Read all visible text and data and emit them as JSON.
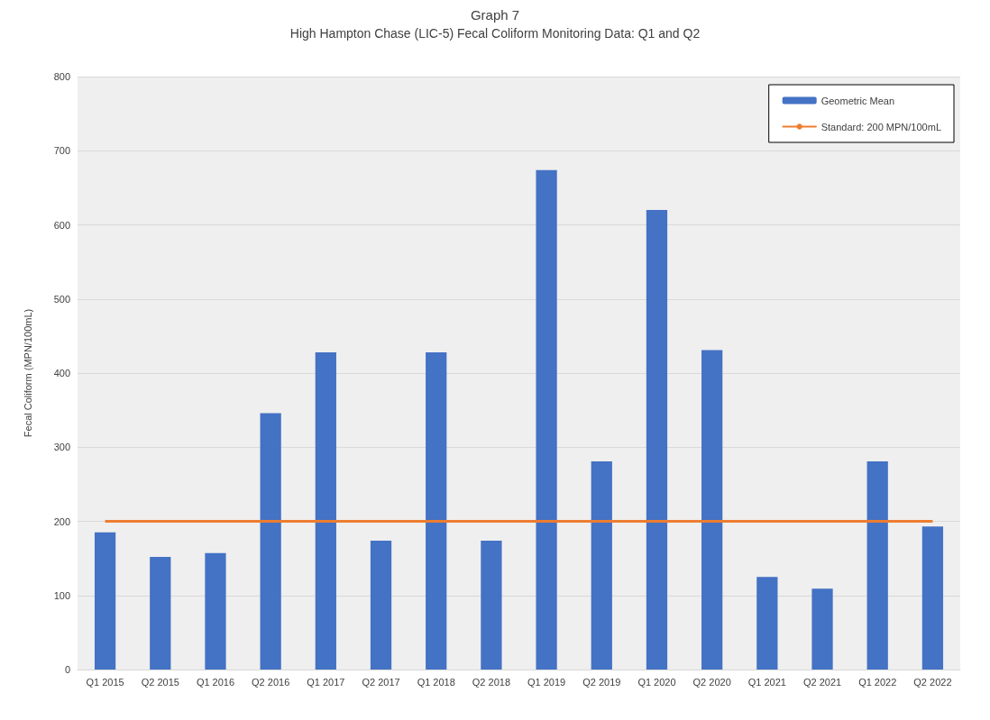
{
  "chart_data": {
    "type": "bar",
    "title": "Graph 7",
    "subtitle": "High Hampton Chase (LIC-5) Fecal Coliform Monitoring Data: Q1 and Q2",
    "ylabel": "Fecal Coliform (MPN/100mL)",
    "categories": [
      "Q1 2015",
      "Q2 2015",
      "Q1 2016",
      "Q2 2016",
      "Q1 2017",
      "Q2 2017",
      "Q1 2018",
      "Q2 2018",
      "Q1 2019",
      "Q2 2019",
      "Q1 2020",
      "Q2 2020",
      "Q1 2021",
      "Q2 2021",
      "Q1 2022",
      "Q2 2022"
    ],
    "series": [
      {
        "name": "Geometric Mean",
        "color": "#4472c4",
        "values": [
          185,
          152,
          157,
          346,
          428,
          174,
          428,
          174,
          674,
          281,
          620,
          431,
          125,
          109,
          281,
          193
        ]
      },
      {
        "name": "Standard: 200 MPN/100mL",
        "type": "line",
        "color": "#ed7d31",
        "marker": "none",
        "values": [
          200,
          200,
          200,
          200,
          200,
          200,
          200,
          200,
          200,
          200,
          200,
          200,
          200,
          200,
          200,
          200
        ]
      }
    ],
    "ylim": [
      0,
      800
    ],
    "yticks": [
      0,
      100,
      200,
      300,
      400,
      500,
      600,
      700,
      800
    ],
    "grid": "y",
    "legend": "top right"
  }
}
